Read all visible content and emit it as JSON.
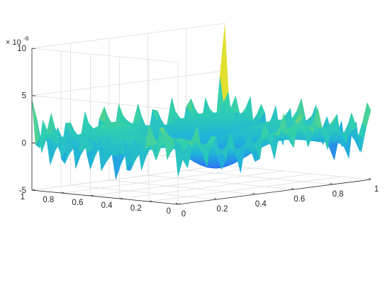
{
  "chart_data": {
    "type": "surface",
    "z_multiplier_label": "× 10",
    "z_multiplier_exponent": "-6",
    "x_ticks": [
      "0",
      "0.2",
      "0.4",
      "0.6",
      "0.8",
      "1"
    ],
    "y_ticks": [
      "0",
      "0.2",
      "0.4",
      "0.6",
      "0.8",
      "1"
    ],
    "z_ticks": [
      "-5",
      "0",
      "5",
      "10"
    ],
    "xlim": [
      0,
      1
    ],
    "ylim": [
      0,
      1
    ],
    "zlim": [
      -5e-06,
      1e-05
    ],
    "grid": true,
    "colormap": [
      "#3b3ef6",
      "#2a7ff0",
      "#20b4d8",
      "#2fcfb0",
      "#7fd468",
      "#e8e12a"
    ]
  }
}
